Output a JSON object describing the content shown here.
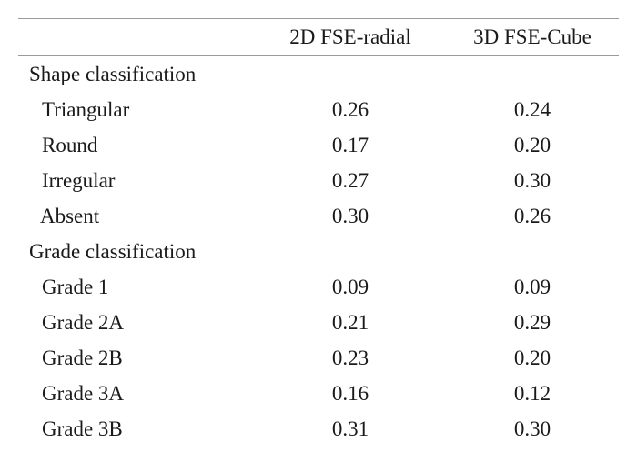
{
  "table": {
    "headers": [
      "",
      "2D FSE-radial",
      "3D FSE-Cube"
    ],
    "sections": [
      {
        "label": "Shape classification",
        "rows": [
          {
            "label": "Triangular",
            "values": [
              "0.26",
              "0.24"
            ]
          },
          {
            "label": "Round",
            "values": [
              "0.17",
              "0.20"
            ]
          },
          {
            "label": "Irregular",
            "values": [
              "0.27",
              "0.30"
            ]
          },
          {
            "label": "Absent",
            "values": [
              "0.30",
              "0.26"
            ]
          }
        ]
      },
      {
        "label": "Grade classification",
        "rows": [
          {
            "label": "Grade 1",
            "values": [
              "0.09",
              "0.09"
            ]
          },
          {
            "label": "Grade 2A",
            "values": [
              "0.21",
              "0.29"
            ]
          },
          {
            "label": "Grade 2B",
            "values": [
              "0.23",
              "0.20"
            ]
          },
          {
            "label": "Grade 3A",
            "values": [
              "0.16",
              "0.12"
            ]
          },
          {
            "label": "Grade 3B",
            "values": [
              "0.31",
              "0.30"
            ]
          }
        ]
      }
    ]
  }
}
